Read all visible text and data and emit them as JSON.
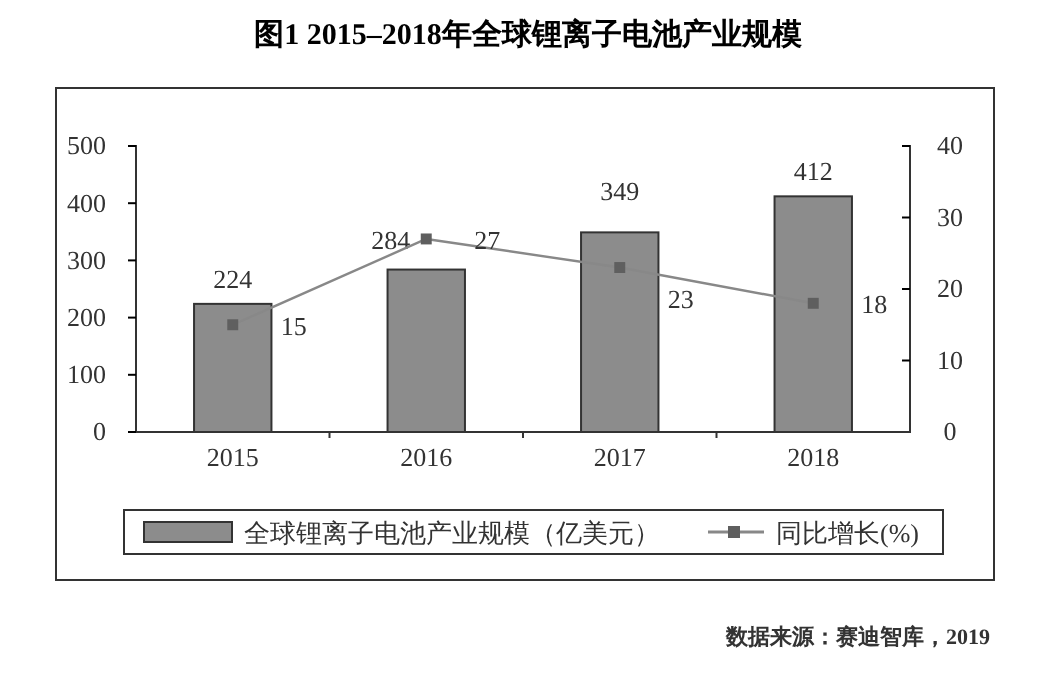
{
  "chart_data": {
    "type": "bar",
    "title": "图1  2015–2018年全球锂离子电池产业规模",
    "categories": [
      "2015",
      "2016",
      "2017",
      "2018"
    ],
    "series": [
      {
        "name": "全球锂离子电池产业规模（亿美元）",
        "color": "#8c8c8c",
        "values": [
          224,
          284,
          349,
          412
        ]
      },
      {
        "name": "同比增长(%)",
        "type": "line",
        "axis": "y2",
        "color": "#888888",
        "values": [
          15,
          27,
          23,
          18
        ]
      }
    ],
    "ylim": [
      0,
      500
    ],
    "yticks": [
      0,
      100,
      200,
      300,
      400,
      500
    ],
    "y2lim": [
      0,
      40
    ],
    "y2ticks": [
      0,
      10,
      20,
      30,
      40
    ],
    "data_labels": true,
    "legend": "bottom",
    "marker": "square",
    "grid": false,
    "annotations": [
      "数据来源：赛迪智库，2019"
    ]
  }
}
